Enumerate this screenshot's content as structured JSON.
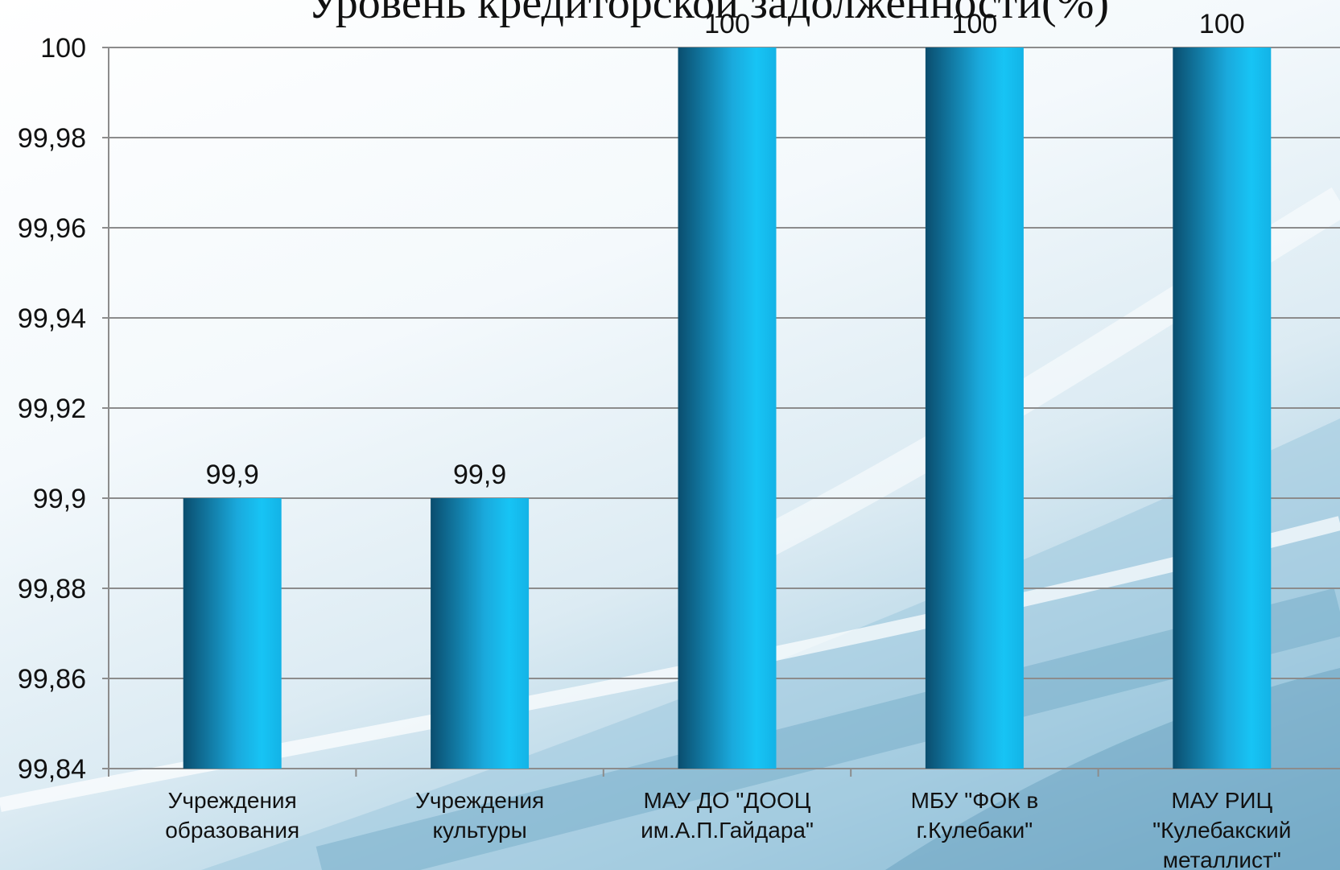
{
  "title": "Уровень кредиторской задолженности(%)",
  "colors": {
    "bar_light": "#17c4f5",
    "bar_dark": "#0a4d6e",
    "grid": "#8c8c8c"
  },
  "chart_data": {
    "type": "bar",
    "title": "Уровень кредиторской задолженности(%)",
    "categories": [
      [
        "Учреждения",
        "образования"
      ],
      [
        "Учреждения",
        "культуры"
      ],
      [
        "МАУ ДО \"ДООЦ",
        "им.А.П.Гайдара\""
      ],
      [
        "МБУ \"ФОК в",
        "г.Кулебаки\""
      ],
      [
        "МАУ РИЦ",
        "\"Кулебакский",
        "металлист\""
      ]
    ],
    "values": [
      99.9,
      99.9,
      100,
      100,
      100
    ],
    "data_labels": [
      "99,9",
      "99,9",
      "100",
      "100",
      "100"
    ],
    "ylim": [
      99.84,
      100
    ],
    "yticks": [
      100,
      99.98,
      99.96,
      99.94,
      99.92,
      99.9,
      99.88,
      99.86,
      99.84
    ],
    "ytick_labels": [
      "100",
      "99,98",
      "99,96",
      "99,94",
      "99,92",
      "99,9",
      "99,88",
      "99,86",
      "99,84"
    ],
    "xlabel": "",
    "ylabel": "",
    "grid": true,
    "legend": "none"
  }
}
